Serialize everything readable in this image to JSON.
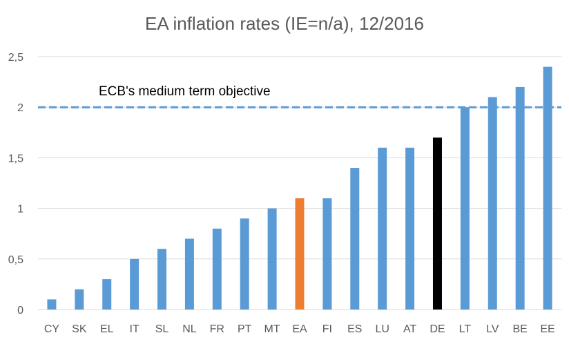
{
  "chart_data": {
    "type": "bar",
    "title": "EA inflation rates (IE=n/a), 12/2016",
    "xlabel": "",
    "ylabel": "",
    "categories": [
      "CY",
      "SK",
      "EL",
      "IT",
      "SL",
      "NL",
      "FR",
      "PT",
      "MT",
      "EA",
      "FI",
      "ES",
      "LU",
      "AT",
      "DE",
      "LT",
      "LV",
      "BE",
      "EE"
    ],
    "values": [
      0.1,
      0.2,
      0.3,
      0.5,
      0.6,
      0.7,
      0.8,
      0.9,
      1.0,
      1.1,
      1.1,
      1.4,
      1.6,
      1.6,
      1.7,
      2.0,
      2.1,
      2.2,
      2.4
    ],
    "ylim": [
      0,
      2.5
    ],
    "yticks": [
      0,
      0.5,
      1,
      1.5,
      2,
      2.5
    ],
    "ytick_labels": [
      "0",
      "0,5",
      "1",
      "1,5",
      "2",
      "2,5"
    ],
    "grid": true,
    "colors": {
      "default": "#5B9BD5",
      "EA": "#ED7D31",
      "DE": "#000000",
      "grid": "#D9D9D9",
      "reference_line": "#5B9BD5"
    },
    "reference_line": {
      "value": 2,
      "label": "ECB's medium term objective",
      "style": "dashed"
    }
  }
}
